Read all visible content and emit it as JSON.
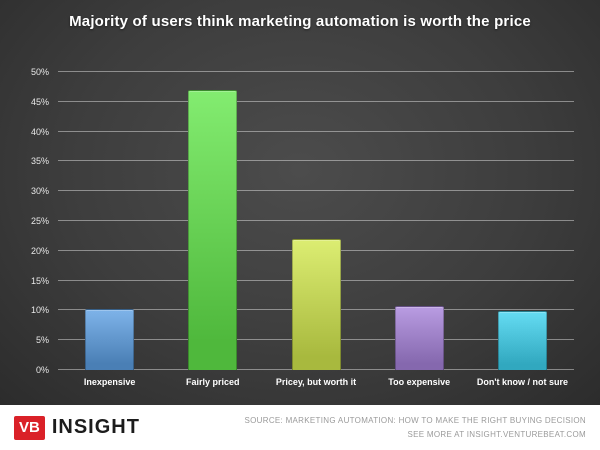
{
  "chart_data": {
    "type": "bar",
    "title": "Majority of users think marketing automation is worth the price",
    "categories": [
      "Inexpensive",
      "Fairly priced",
      "Pricey, but worth it",
      "Too expensive",
      "Don't know / not sure"
    ],
    "values": [
      10.3,
      47,
      22,
      10.7,
      9.9
    ],
    "bar_colors": [
      "#4a7fb5",
      "#4fb83c",
      "#a8b93e",
      "#8568ae",
      "#31a8bf"
    ],
    "xlabel": "",
    "ylabel": "",
    "ylim": [
      0,
      50
    ],
    "yticks": [
      "0%",
      "5%",
      "10%",
      "15%",
      "20%",
      "25%",
      "30%",
      "35%",
      "40%",
      "45%",
      "50%"
    ],
    "grid": true,
    "legend": "none",
    "background": "#3d3d3d"
  },
  "footer": {
    "logo_vb": "VB",
    "logo_insight": "INSIGHT",
    "source_line1": "SOURCE: MARKETING AUTOMATION: HOW TO MAKE THE RIGHT BUYING DECISION",
    "source_line2": "SEE MORE AT INSIGHT.VENTUREBEAT.COM"
  },
  "brand": {
    "vb_red": "#da2128"
  }
}
